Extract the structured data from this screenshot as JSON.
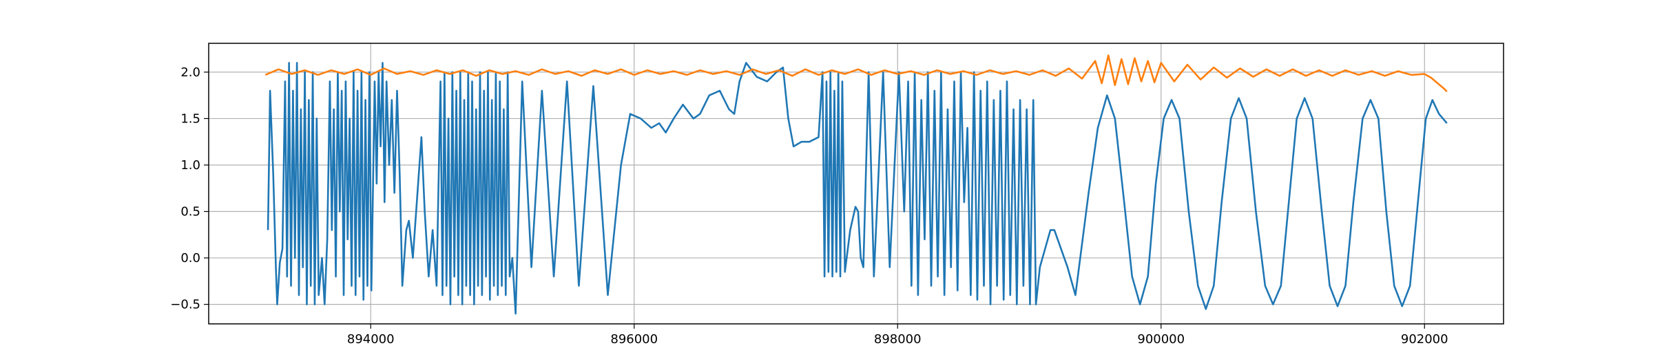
{
  "chart_data": {
    "type": "line",
    "xlim": [
      892770,
      902600
    ],
    "ylim": [
      -0.71,
      2.31
    ],
    "xticks": [
      894000,
      896000,
      898000,
      900000,
      902000
    ],
    "yticks": [
      {
        "value": -0.5,
        "label": "−0.5"
      },
      {
        "value": 0,
        "label": "0.0"
      },
      {
        "value": 0.5,
        "label": "0.5"
      },
      {
        "value": 1,
        "label": "1.0"
      },
      {
        "value": 1.5,
        "label": "1.5"
      },
      {
        "value": 2,
        "label": "2.0"
      }
    ],
    "grid": true,
    "series": [
      {
        "color": "#1f77b4",
        "x": [
          893220,
          893236,
          893260,
          893280,
          893290,
          893310,
          893330,
          893350,
          893365,
          893380,
          893395,
          893410,
          893425,
          893440,
          893455,
          893470,
          893485,
          893500,
          893515,
          893530,
          893545,
          893560,
          893575,
          893590,
          893605,
          893630,
          893650,
          893670,
          893690,
          893705,
          893720,
          893735,
          893750,
          893765,
          893780,
          893795,
          893810,
          893825,
          893840,
          893855,
          893870,
          893885,
          893900,
          893915,
          893930,
          893945,
          893960,
          893975,
          893990,
          894005,
          894030,
          894045,
          894060,
          894075,
          894090,
          894105,
          894120,
          894140,
          894160,
          894180,
          894200,
          894220,
          894240,
          894270,
          894290,
          894320,
          894360,
          894385,
          894410,
          894440,
          894470,
          894500,
          894530,
          894545,
          894560,
          894575,
          894590,
          894605,
          894620,
          894635,
          894650,
          894665,
          894680,
          894695,
          894710,
          894725,
          894740,
          894755,
          894770,
          894785,
          894800,
          894815,
          894830,
          894845,
          894860,
          894875,
          894890,
          894905,
          894920,
          894935,
          894950,
          894965,
          894980,
          894995,
          895010,
          895025,
          895040,
          895055,
          895075,
          895100,
          895150,
          895220,
          895300,
          895390,
          895490,
          895580,
          895690,
          895800,
          895900,
          895970,
          896050,
          896130,
          896190,
          896240,
          896300,
          896370,
          896450,
          896500,
          896570,
          896650,
          896720,
          896760,
          896800,
          896850,
          896930,
          897010,
          897080,
          897130,
          897170,
          897210,
          897270,
          897330,
          897400,
          897430,
          897445,
          897460,
          897475,
          897490,
          897505,
          897520,
          897535,
          897550,
          897565,
          897580,
          897600,
          897640,
          897680,
          897700,
          897720,
          897740,
          897780,
          897820,
          897890,
          897940,
          898010,
          898050,
          898080,
          898105,
          898130,
          898155,
          898180,
          898205,
          898230,
          898255,
          898280,
          898305,
          898330,
          898355,
          898380,
          898405,
          898430,
          898455,
          898480,
          898505,
          898530,
          898555,
          898580,
          898605,
          898630,
          898655,
          898680,
          898705,
          898730,
          898755,
          898780,
          898805,
          898830,
          898855,
          898880,
          898905,
          898930,
          898955,
          898980,
          899005,
          899030,
          899050,
          899080,
          899120,
          899160,
          899190,
          899240,
          899290,
          899350,
          899450,
          899520,
          899590,
          899650,
          899720,
          899780,
          899840,
          899900,
          899960,
          900020,
          900080,
          900140,
          900210,
          900280,
          900340,
          900400,
          900460,
          900530,
          900590,
          900650,
          900720,
          900790,
          900850,
          900910,
          900970,
          901030,
          901090,
          901150,
          901220,
          901280,
          901340,
          901400,
          901460,
          901530,
          901590,
          901650,
          901710,
          901770,
          901830,
          901890,
          901950,
          902010,
          902060,
          902110,
          902170
        ],
        "values": [
          0.3,
          1.8,
          0.9,
          -0.1,
          -0.5,
          -0.05,
          0.1,
          1.9,
          -0.2,
          2.1,
          -0.3,
          1.8,
          0.0,
          2.1,
          -0.4,
          1.6,
          -0.1,
          2.0,
          -0.5,
          1.7,
          -0.3,
          2.0,
          -0.5,
          1.5,
          -0.4,
          0.0,
          -0.5,
          0.2,
          1.9,
          0.3,
          1.6,
          -0.2,
          2.0,
          0.5,
          1.8,
          -0.4,
          1.9,
          0.2,
          1.5,
          -0.3,
          2.0,
          -0.4,
          1.8,
          -0.2,
          2.0,
          -0.45,
          1.7,
          -0.3,
          2.0,
          -0.35,
          1.9,
          0.8,
          2.0,
          1.2,
          2.1,
          0.6,
          1.9,
          1.0,
          1.7,
          0.7,
          1.8,
          0.9,
          -0.3,
          0.3,
          0.4,
          0.0,
          0.8,
          1.3,
          0.5,
          -0.2,
          0.3,
          -0.3,
          1.9,
          -0.4,
          2.0,
          -0.3,
          1.5,
          -0.5,
          2.0,
          -0.2,
          1.8,
          -0.4,
          2.0,
          -0.5,
          1.7,
          -0.3,
          2.0,
          -0.4,
          1.9,
          -0.5,
          1.6,
          -0.3,
          2.0,
          -0.4,
          1.8,
          -0.2,
          2.0,
          -0.45,
          1.7,
          -0.3,
          2.0,
          -0.4,
          1.9,
          -0.3,
          1.6,
          -0.4,
          2.0,
          -0.2,
          0.0,
          -0.6,
          1.9,
          -0.1,
          1.8,
          -0.2,
          1.9,
          -0.3,
          1.85,
          -0.4,
          1.0,
          1.55,
          1.5,
          1.4,
          1.45,
          1.35,
          1.5,
          1.65,
          1.5,
          1.55,
          1.75,
          1.8,
          1.6,
          1.55,
          1.9,
          2.1,
          1.95,
          1.9,
          2.0,
          2.05,
          1.5,
          1.2,
          1.25,
          1.25,
          1.3,
          2.0,
          -0.2,
          1.9,
          -0.15,
          2.0,
          -0.2,
          1.8,
          -0.15,
          2.0,
          -0.2,
          1.9,
          -0.15,
          0.3,
          0.55,
          0.5,
          0.0,
          -0.1,
          2.0,
          -0.2,
          2.0,
          -0.1,
          2.0,
          0.5,
          1.9,
          -0.3,
          2.0,
          -0.4,
          1.7,
          0.2,
          2.0,
          -0.3,
          1.8,
          -0.2,
          2.0,
          -0.4,
          1.6,
          -0.1,
          1.9,
          -0.35,
          2.0,
          0.6,
          1.4,
          -0.4,
          2.0,
          -0.45,
          1.8,
          -0.3,
          1.9,
          -0.5,
          1.7,
          -0.3,
          1.8,
          -0.45,
          1.9,
          -0.4,
          1.6,
          -0.5,
          1.7,
          -0.3,
          1.6,
          -0.5,
          1.7,
          -0.5,
          -0.1,
          0.1,
          0.3,
          0.3,
          0.1,
          -0.1,
          -0.4,
          0.7,
          1.4,
          1.75,
          1.5,
          0.6,
          -0.2,
          -0.5,
          -0.2,
          0.8,
          1.5,
          1.7,
          1.5,
          0.5,
          -0.3,
          -0.55,
          -0.3,
          0.6,
          1.5,
          1.72,
          1.5,
          0.5,
          -0.3,
          -0.5,
          -0.3,
          0.6,
          1.5,
          1.72,
          1.5,
          0.5,
          -0.3,
          -0.52,
          -0.3,
          0.6,
          1.5,
          1.7,
          1.5,
          0.5,
          -0.3,
          -0.52,
          -0.3,
          0.6,
          1.5,
          1.7,
          1.55,
          1.45
        ]
      },
      {
        "color": "#ff7f0e",
        "x": [
          893200,
          893300,
          893400,
          893500,
          893600,
          893700,
          893800,
          893900,
          894000,
          894100,
          894200,
          894300,
          894400,
          894500,
          894600,
          894700,
          894800,
          894900,
          895000,
          895100,
          895200,
          895300,
          895400,
          895500,
          895600,
          895700,
          895800,
          895900,
          896000,
          896100,
          896200,
          896300,
          896400,
          896500,
          896600,
          896700,
          896800,
          896900,
          897000,
          897100,
          897200,
          897300,
          897400,
          897500,
          897600,
          897700,
          897800,
          897900,
          898000,
          898100,
          898200,
          898300,
          898400,
          898500,
          898600,
          898700,
          898800,
          898900,
          899000,
          899100,
          899200,
          899300,
          899400,
          899500,
          899550,
          899600,
          899650,
          899700,
          899750,
          899800,
          899850,
          899900,
          899950,
          900000,
          900100,
          900200,
          900300,
          900400,
          900500,
          900600,
          900700,
          900800,
          900900,
          901000,
          901100,
          901200,
          901300,
          901400,
          901500,
          901600,
          901700,
          901800,
          901900,
          902000,
          902050,
          902100,
          902150,
          902170
        ],
        "values": [
          1.97,
          2.03,
          1.98,
          2.02,
          1.97,
          2.02,
          1.98,
          2.03,
          1.97,
          2.04,
          1.98,
          2.01,
          1.97,
          2.02,
          1.98,
          2.02,
          1.96,
          2.02,
          1.98,
          2.01,
          1.97,
          2.03,
          1.98,
          2.01,
          1.96,
          2.02,
          1.98,
          2.03,
          1.97,
          2.02,
          1.98,
          2.01,
          1.97,
          2.02,
          1.98,
          2.01,
          1.97,
          2.03,
          1.98,
          2.02,
          1.96,
          2.03,
          1.97,
          2.02,
          1.98,
          2.03,
          1.97,
          2.02,
          1.98,
          2.01,
          1.97,
          2.02,
          1.98,
          2.01,
          1.97,
          2.02,
          1.98,
          2.01,
          1.97,
          2.02,
          1.96,
          2.04,
          1.93,
          2.12,
          1.88,
          2.18,
          1.86,
          2.14,
          1.87,
          2.15,
          1.9,
          2.12,
          1.89,
          2.1,
          1.9,
          2.08,
          1.92,
          2.05,
          1.94,
          2.04,
          1.95,
          2.03,
          1.96,
          2.03,
          1.96,
          2.02,
          1.96,
          2.02,
          1.97,
          2.01,
          1.96,
          2.01,
          1.97,
          1.98,
          1.94,
          1.88,
          1.82,
          1.79
        ]
      }
    ]
  }
}
